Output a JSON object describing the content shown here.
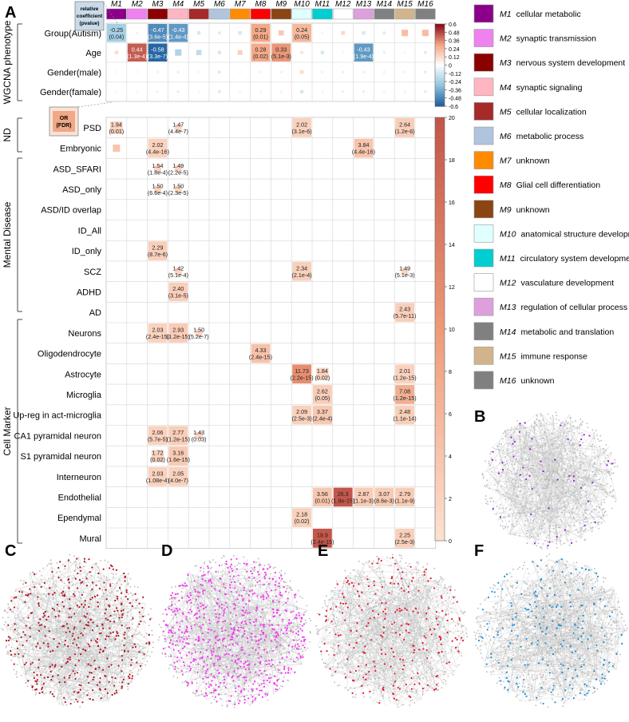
{
  "panel_labels": {
    "a": "A",
    "b": "B",
    "c": "C",
    "d": "D",
    "e": "E",
    "f": "F"
  },
  "modules": [
    {
      "id": "M1",
      "name": "cellular metabolic",
      "color": "#8b008b"
    },
    {
      "id": "M2",
      "name": "synaptic transmission",
      "color": "#ee82ee"
    },
    {
      "id": "M3",
      "name": "nervous system development",
      "color": "#8b0000"
    },
    {
      "id": "M4",
      "name": "synaptic signaling",
      "color": "#ffb6c1"
    },
    {
      "id": "M5",
      "name": "cellular localization",
      "color": "#a52a2a"
    },
    {
      "id": "M6",
      "name": "metabolic process",
      "color": "#b0c4de"
    },
    {
      "id": "M7",
      "name": "unknown",
      "color": "#ff8c00"
    },
    {
      "id": "M8",
      "name": "Glial cell differentiation",
      "color": "#ff0000"
    },
    {
      "id": "M9",
      "name": "unknown",
      "color": "#8b4513"
    },
    {
      "id": "M10",
      "name": "anatomical structure development",
      "color": "#e0ffff"
    },
    {
      "id": "M11",
      "name": "circulatory system development",
      "color": "#00ced1"
    },
    {
      "id": "M12",
      "name": "vasculature development",
      "color": "#ffffff"
    },
    {
      "id": "M13",
      "name": "regulation of cellular process",
      "color": "#dda0dd"
    },
    {
      "id": "M14",
      "name": "metabolic and translation",
      "color": "#808080"
    },
    {
      "id": "M15",
      "name": "immune response",
      "color": "#d2b48c"
    },
    {
      "id": "M16",
      "name": "unknown",
      "color": "#808080"
    }
  ],
  "legend_top": {
    "line1": "relative",
    "line2": "coefficient",
    "line3": "(pvalue)"
  },
  "legend_mid": {
    "line1": "OR",
    "line2": "(FDR)"
  },
  "groups": {
    "wgcna": "WGCNA phenotype",
    "nd": "ND",
    "mental": "Mental Disease",
    "cell": "Cell Marker"
  },
  "top_rows": [
    "Group(Autism)",
    "Age",
    "Gender(male)",
    "Gender(famale)"
  ],
  "top_cells": [
    {
      "row": 0,
      "col": 0,
      "v": -0.25,
      "l1": "-0.25",
      "l2": "(0.04)"
    },
    {
      "row": 0,
      "col": 1,
      "v": 0.06
    },
    {
      "row": 0,
      "col": 2,
      "v": -0.47,
      "l1": "-0.47",
      "l2": "(3.6e-5)"
    },
    {
      "row": 0,
      "col": 3,
      "v": -0.43,
      "l1": "-0.43",
      "l2": "(1.4e-4)"
    },
    {
      "row": 0,
      "col": 4,
      "v": -0.12
    },
    {
      "row": 0,
      "col": 5,
      "v": -0.1
    },
    {
      "row": 0,
      "col": 6,
      "v": -0.12
    },
    {
      "row": 0,
      "col": 7,
      "v": 0.29,
      "l1": "0.29",
      "l2": "(0.01)"
    },
    {
      "row": 0,
      "col": 8,
      "v": 0.18
    },
    {
      "row": 0,
      "col": 9,
      "v": 0.24,
      "l1": "0.24",
      "l2": "(0.05)"
    },
    {
      "row": 0,
      "col": 10,
      "v": -0.04
    },
    {
      "row": 0,
      "col": 11,
      "v": 0.13
    },
    {
      "row": 0,
      "col": 12,
      "v": -0.12
    },
    {
      "row": 0,
      "col": 13,
      "v": -0.1
    },
    {
      "row": 0,
      "col": 14,
      "v": 0.22
    },
    {
      "row": 0,
      "col": 15,
      "v": 0.22
    },
    {
      "row": 1,
      "col": 0,
      "v": 0.12
    },
    {
      "row": 1,
      "col": 1,
      "v": 0.44,
      "l1": "0.44",
      "l2": "(1.3e-4)"
    },
    {
      "row": 1,
      "col": 2,
      "v": -0.58,
      "l1": "-0.58",
      "l2": "(3.3e-7)"
    },
    {
      "row": 1,
      "col": 3,
      "v": -0.22
    },
    {
      "row": 1,
      "col": 4,
      "v": -0.18
    },
    {
      "row": 1,
      "col": 5,
      "v": -0.12
    },
    {
      "row": 1,
      "col": 6,
      "v": 0.16
    },
    {
      "row": 1,
      "col": 7,
      "v": 0.28,
      "l1": "0.28",
      "l2": "(0.02)"
    },
    {
      "row": 1,
      "col": 8,
      "v": 0.33,
      "l1": "0.33",
      "l2": "(5.1e-3)"
    },
    {
      "row": 1,
      "col": 9,
      "v": 0.1
    },
    {
      "row": 1,
      "col": 10,
      "v": -0.12
    },
    {
      "row": 1,
      "col": 11,
      "v": -0.04
    },
    {
      "row": 1,
      "col": 12,
      "v": -0.43,
      "l1": "-0.43",
      "l2": "(1.9e-4)"
    },
    {
      "row": 1,
      "col": 13,
      "v": -0.08
    },
    {
      "row": 1,
      "col": 14,
      "v": 0.04
    },
    {
      "row": 1,
      "col": 15,
      "v": -0.1
    },
    {
      "row": 2,
      "col": 0,
      "v": 0.03
    },
    {
      "row": 2,
      "col": 1,
      "v": 0.03
    },
    {
      "row": 2,
      "col": 2,
      "v": -0.06
    },
    {
      "row": 2,
      "col": 3,
      "v": -0.08
    },
    {
      "row": 2,
      "col": 4,
      "v": 0.04
    },
    {
      "row": 2,
      "col": 5,
      "v": -0.1
    },
    {
      "row": 2,
      "col": 6,
      "v": 0.04
    },
    {
      "row": 2,
      "col": 7,
      "v": -0.05
    },
    {
      "row": 2,
      "col": 8,
      "v": -0.05
    },
    {
      "row": 2,
      "col": 9,
      "v": 0.12
    },
    {
      "row": 2,
      "col": 10,
      "v": 0.05
    },
    {
      "row": 2,
      "col": 11,
      "v": -0.07
    },
    {
      "row": 2,
      "col": 12,
      "v": -0.07
    },
    {
      "row": 2,
      "col": 13,
      "v": 0.05
    },
    {
      "row": 2,
      "col": 14,
      "v": -0.05
    },
    {
      "row": 2,
      "col": 15,
      "v": -0.09
    },
    {
      "row": 3,
      "col": 0,
      "v": 0.03
    },
    {
      "row": 3,
      "col": 1,
      "v": 0.03
    },
    {
      "row": 3,
      "col": 2,
      "v": 0.06
    },
    {
      "row": 3,
      "col": 3,
      "v": 0.08
    },
    {
      "row": 3,
      "col": 4,
      "v": -0.04
    },
    {
      "row": 3,
      "col": 5,
      "v": 0.1
    },
    {
      "row": 3,
      "col": 6,
      "v": -0.04
    },
    {
      "row": 3,
      "col": 7,
      "v": 0.05
    },
    {
      "row": 3,
      "col": 8,
      "v": 0.05
    },
    {
      "row": 3,
      "col": 9,
      "v": -0.12
    },
    {
      "row": 3,
      "col": 10,
      "v": -0.05
    },
    {
      "row": 3,
      "col": 11,
      "v": 0.07
    },
    {
      "row": 3,
      "col": 12,
      "v": 0.07
    },
    {
      "row": 3,
      "col": 13,
      "v": -0.05
    },
    {
      "row": 3,
      "col": 14,
      "v": 0.05
    },
    {
      "row": 3,
      "col": 15,
      "v": 0.09
    }
  ],
  "top_colorbar": {
    "ticks": [
      "0.6",
      "0.48",
      "0.36",
      "0.24",
      "0.12",
      "0",
      "-0.12",
      "-0.24",
      "-0.36",
      "-0.48",
      "-0.6"
    ],
    "min": -0.6,
    "max": 0.6
  },
  "bottom_rows": [
    "PSD",
    "Embryonic",
    "ASD_SFARI",
    "ASD_only",
    "ASD/ID overlap",
    "ID_All",
    "ID_only",
    "SCZ",
    "ADHD",
    "AD",
    "Neurons",
    "Oligodendrocyte",
    "Astrocyte",
    "Microglia",
    "Up-reg in act-microglia",
    "CA1 pyramidal neuron",
    "S1 pyramidal neuron",
    "Interneuron",
    "Endothelial",
    "Ependymal",
    "Mural"
  ],
  "bottom_cells": [
    {
      "row": 0,
      "col": 0,
      "v": 1.94,
      "l1": "1.94",
      "l2": "(0.01)"
    },
    {
      "row": 0,
      "col": 3,
      "v": 1.47,
      "l1": "1.47",
      "l2": "(4.4e-7)"
    },
    {
      "row": 0,
      "col": 9,
      "v": 2.02,
      "l1": "2.02",
      "l2": "(3.1e-6)"
    },
    {
      "row": 0,
      "col": 14,
      "v": 2.64,
      "l1": "2.64",
      "l2": "(1.2e-6)"
    },
    {
      "row": 1,
      "col": 0,
      "v": 4.0
    },
    {
      "row": 1,
      "col": 2,
      "v": 2.02,
      "l1": "2.02",
      "l2": "(4.4e-16)"
    },
    {
      "row": 1,
      "col": 12,
      "v": 3.84,
      "l1": "3.84",
      "l2": "(4.4e-16)"
    },
    {
      "row": 2,
      "col": 2,
      "v": 1.54,
      "l1": "1.54",
      "l2": "(1.8e-4)"
    },
    {
      "row": 2,
      "col": 3,
      "v": 1.49,
      "l1": "1.49",
      "l2": "(2.2e-5)"
    },
    {
      "row": 3,
      "col": 2,
      "v": 1.5,
      "l1": "1.50",
      "l2": "(6.6e-4)"
    },
    {
      "row": 3,
      "col": 3,
      "v": 1.5,
      "l1": "1.50",
      "l2": "(2.3e-5)"
    },
    {
      "row": 6,
      "col": 2,
      "v": 2.29,
      "l1": "2.29",
      "l2": "(8.7e-6)"
    },
    {
      "row": 7,
      "col": 3,
      "v": 1.42,
      "l1": "1.42",
      "l2": "(5.1e-4)"
    },
    {
      "row": 7,
      "col": 9,
      "v": 2.34,
      "l1": "2.34",
      "l2": "(2.1e-4)"
    },
    {
      "row": 7,
      "col": 14,
      "v": 1.49,
      "l1": "1.49",
      "l2": "(5.1e-3)"
    },
    {
      "row": 8,
      "col": 3,
      "v": 2.4,
      "l1": "2.40",
      "l2": "(3.1e-5)"
    },
    {
      "row": 9,
      "col": 14,
      "v": 2.43,
      "l1": "2.43",
      "l2": "(5.7e-11)"
    },
    {
      "row": 10,
      "col": 2,
      "v": 2.03,
      "l1": "2.03",
      "l2": "(2.4e-15)"
    },
    {
      "row": 10,
      "col": 3,
      "v": 2.93,
      "l1": "2.93",
      "l2": "(1.2e-15)"
    },
    {
      "row": 10,
      "col": 4,
      "v": 1.5,
      "l1": "1.50",
      "l2": "(5.2e-7)"
    },
    {
      "row": 11,
      "col": 7,
      "v": 4.33,
      "l1": "4.33",
      "l2": "(2.4e-15)"
    },
    {
      "row": 12,
      "col": 9,
      "v": 11.73,
      "l1": "11.73",
      "l2": "(2.2e-15)"
    },
    {
      "row": 12,
      "col": 10,
      "v": 1.84,
      "l1": "1.84",
      "l2": "(0.02)"
    },
    {
      "row": 12,
      "col": 14,
      "v": 2.01,
      "l1": "2.01",
      "l2": "(1.2e-15)"
    },
    {
      "row": 13,
      "col": 10,
      "v": 2.62,
      "l1": "2.62",
      "l2": "(0.05)"
    },
    {
      "row": 13,
      "col": 14,
      "v": 7.08,
      "l1": "7.08",
      "l2": "(1.2e-15)"
    },
    {
      "row": 14,
      "col": 9,
      "v": 2.09,
      "l1": "2.09",
      "l2": "(2.5e-3)"
    },
    {
      "row": 14,
      "col": 10,
      "v": 3.37,
      "l1": "3.37",
      "l2": "(2.4e-4)"
    },
    {
      "row": 14,
      "col": 14,
      "v": 2.48,
      "l1": "2.48",
      "l2": "(1.1e-14)"
    },
    {
      "row": 15,
      "col": 2,
      "v": 2.06,
      "l1": "2.06",
      "l2": "(5.7e-5)"
    },
    {
      "row": 15,
      "col": 3,
      "v": 2.77,
      "l1": "2.77",
      "l2": "(1.2e-15)"
    },
    {
      "row": 15,
      "col": 4,
      "v": 1.43,
      "l1": "1.43",
      "l2": "(0.03)"
    },
    {
      "row": 16,
      "col": 2,
      "v": 1.72,
      "l1": "1.72",
      "l2": "(0.02)"
    },
    {
      "row": 16,
      "col": 3,
      "v": 3.16,
      "l1": "3.16",
      "l2": "(1.6e-15)"
    },
    {
      "row": 17,
      "col": 2,
      "v": 2.03,
      "l1": "2.03",
      "l2": "(1.08e-4)"
    },
    {
      "row": 17,
      "col": 3,
      "v": 2.05,
      "l1": "2.05",
      "l2": "(4.0e-7)"
    },
    {
      "row": 18,
      "col": 10,
      "v": 3.56,
      "l1": "3.56",
      "l2": "(0.01)"
    },
    {
      "row": 18,
      "col": 11,
      "v": 26.3,
      "l1": "26.3",
      "l2": "(1.8e-15)"
    },
    {
      "row": 18,
      "col": 12,
      "v": 2.87,
      "l1": "2.87",
      "l2": "(1.1e-3)"
    },
    {
      "row": 18,
      "col": 13,
      "v": 3.07,
      "l1": "3.07",
      "l2": "(8.6e-3)"
    },
    {
      "row": 18,
      "col": 14,
      "v": 2.79,
      "l1": "2.79",
      "l2": "(1.1e-9)"
    },
    {
      "row": 19,
      "col": 9,
      "v": 2.18,
      "l1": "2.18",
      "l2": "(0.02)"
    },
    {
      "row": 20,
      "col": 10,
      "v": 19.9,
      "l1": "19.9",
      "l2": "(2.4e-15)"
    },
    {
      "row": 20,
      "col": 14,
      "v": 2.25,
      "l1": "2.25",
      "l2": "(2.5e-3)"
    }
  ],
  "bottom_colorbar": {
    "ticks": [
      "20",
      "18",
      "16",
      "14",
      "12",
      "10",
      "8",
      "6",
      "4",
      "2",
      "0"
    ],
    "min": 0,
    "max": 20
  },
  "networks": [
    {
      "panel": "B",
      "color": "#9b1fcf",
      "highlight": 90,
      "background": 1300
    },
    {
      "panel": "C",
      "color": "#b3121e",
      "highlight": 750,
      "background": 1300
    },
    {
      "panel": "D",
      "color": "#f33bf0",
      "highlight": 1300,
      "background": 1300
    },
    {
      "panel": "E",
      "color": "#e8132c",
      "highlight": 420,
      "background": 1300
    },
    {
      "panel": "F",
      "color": "#1e8fd8",
      "highlight": 380,
      "background": 1300
    }
  ]
}
